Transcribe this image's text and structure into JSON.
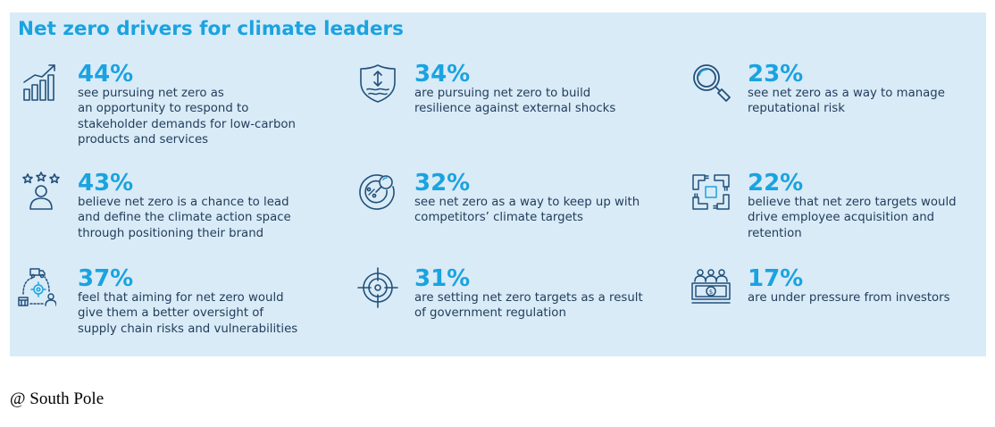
{
  "title": "Net zero drivers for climate leaders",
  "colors": {
    "accent": "#1aa3e0",
    "text": "#223e5c",
    "panel": "#d9ebf7"
  },
  "items": [
    {
      "pct": "44%",
      "desc": "see pursuing net zero as\nan opportunity to respond to\nstakeholder demands for low-carbon\nproducts and services",
      "icon": "rising-bar-chart-icon"
    },
    {
      "pct": "34%",
      "desc": "are pursuing net zero to build\nresilience against external shocks",
      "icon": "shield-icon"
    },
    {
      "pct": "23%",
      "desc": "see net zero as a way to manage\nreputational risk",
      "icon": "magnifier-icon"
    },
    {
      "pct": "43%",
      "desc": "believe net zero is a chance to lead\nand define the climate action space\nthrough positioning their brand",
      "icon": "person-stars-icon"
    },
    {
      "pct": "32%",
      "desc": "see net zero as a way to keep up with\ncompetitors’ climate targets",
      "icon": "target-search-icon"
    },
    {
      "pct": "22%",
      "desc": "believe that net zero targets would\ndrive employee acquisition and\nretention",
      "icon": "joined-hands-icon"
    },
    {
      "pct": "37%",
      "desc": "feel that aiming for net zero would\ngive them a better oversight of\nsupply chain risks and vulnerabilities",
      "icon": "supply-chain-icon"
    },
    {
      "pct": "31%",
      "desc": "are setting net zero targets as a result\nof government regulation",
      "icon": "crosshair-icon"
    },
    {
      "pct": "17%",
      "desc": "are under pressure from investors",
      "icon": "investors-money-icon"
    }
  ],
  "credit": "@ South Pole"
}
